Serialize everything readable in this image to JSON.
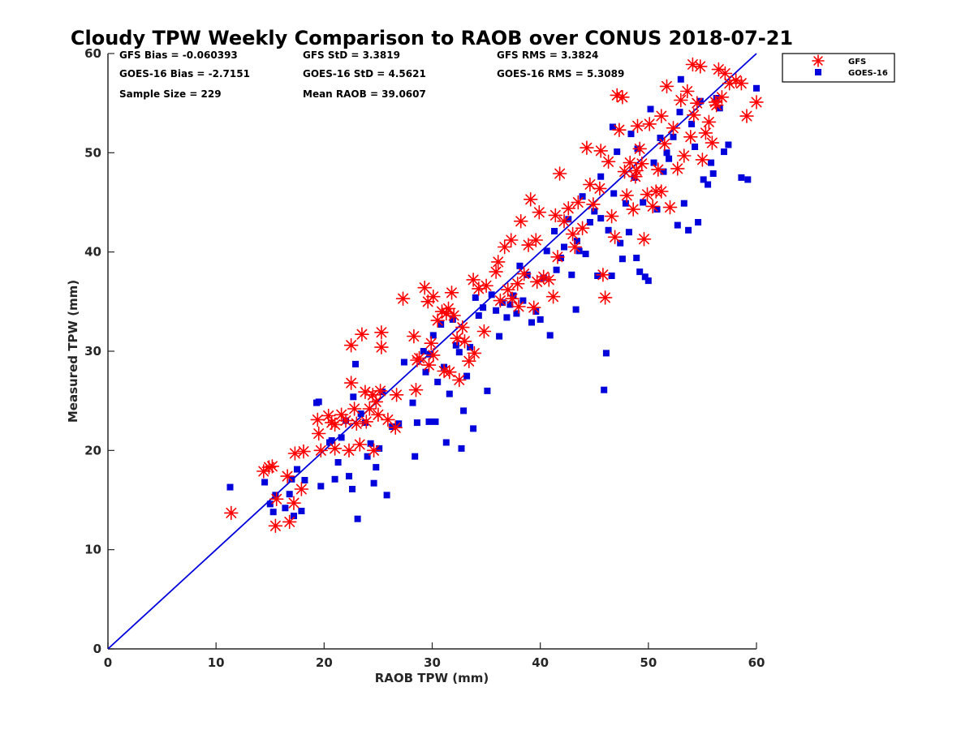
{
  "chart_data": {
    "type": "scatter",
    "title": "Cloudy TPW Weekly Comparison to RAOB over CONUS 2018-07-21",
    "xlabel": "RAOB TPW (mm)",
    "ylabel": "Measured TPW (mm)",
    "xlim": [
      0,
      60
    ],
    "ylim": [
      0,
      60
    ],
    "xticks": [
      "0",
      "10",
      "20",
      "30",
      "40",
      "50",
      "60"
    ],
    "yticks": [
      "0",
      "10",
      "20",
      "30",
      "40",
      "50",
      "60"
    ],
    "grid": false,
    "legend_position": "top-right outside",
    "stats": {
      "gfs_bias": "GFS Bias = -0.060393",
      "gfs_std": "GFS StD = 3.3819",
      "gfs_rms": "GFS RMS = 3.3824",
      "goes_bias": "GOES-16 Bias = -2.7151",
      "goes_std": "GOES-16 StD = 4.5621",
      "goes_rms": "GOES-16 RMS = 5.3089",
      "sample_size": "Sample Size = 229",
      "mean_raob": "Mean RAOB = 39.0607"
    },
    "reference_line": {
      "x": [
        0,
        60
      ],
      "y": [
        0,
        60
      ],
      "color": "#0000dd"
    },
    "series": [
      {
        "name": "GFS",
        "marker": "asterisk",
        "color": "#ff0000",
        "points": [
          [
            11.4,
            13.7
          ],
          [
            14.4,
            17.9
          ],
          [
            14.9,
            18.3
          ],
          [
            15.2,
            18.4
          ],
          [
            15.5,
            12.4
          ],
          [
            15.6,
            15.1
          ],
          [
            16.6,
            17.4
          ],
          [
            16.8,
            12.8
          ],
          [
            17.2,
            14.7
          ],
          [
            17.3,
            19.7
          ],
          [
            17.9,
            16.1
          ],
          [
            18.1,
            19.9
          ],
          [
            19.4,
            23.1
          ],
          [
            19.5,
            21.7
          ],
          [
            19.7,
            20.0
          ],
          [
            20.4,
            23.5
          ],
          [
            20.7,
            22.8
          ],
          [
            21.0,
            22.6
          ],
          [
            21.0,
            20.2
          ],
          [
            21.6,
            23.6
          ],
          [
            22.0,
            23.0
          ],
          [
            22.3,
            20.0
          ],
          [
            22.5,
            30.6
          ],
          [
            22.5,
            26.8
          ],
          [
            22.8,
            24.2
          ],
          [
            23.0,
            22.7
          ],
          [
            23.3,
            20.6
          ],
          [
            23.5,
            31.7
          ],
          [
            23.8,
            25.9
          ],
          [
            23.9,
            22.9
          ],
          [
            24.2,
            24.2
          ],
          [
            24.5,
            25.6
          ],
          [
            24.6,
            20.0
          ],
          [
            24.8,
            24.9
          ],
          [
            25.0,
            23.6
          ],
          [
            25.2,
            26.0
          ],
          [
            25.3,
            31.9
          ],
          [
            25.3,
            30.4
          ],
          [
            25.9,
            23.1
          ],
          [
            26.6,
            22.3
          ],
          [
            26.7,
            25.6
          ],
          [
            27.3,
            35.3
          ],
          [
            28.3,
            31.5
          ],
          [
            28.5,
            26.1
          ],
          [
            28.6,
            29.1
          ],
          [
            28.8,
            29.3
          ],
          [
            29.3,
            36.4
          ],
          [
            29.6,
            35.0
          ],
          [
            29.7,
            28.6
          ],
          [
            29.9,
            30.8
          ],
          [
            30.1,
            35.5
          ],
          [
            30.1,
            29.6
          ],
          [
            30.5,
            33.1
          ],
          [
            30.9,
            34.0
          ],
          [
            31.1,
            28.0
          ],
          [
            31.3,
            33.8
          ],
          [
            31.5,
            34.3
          ],
          [
            31.6,
            27.9
          ],
          [
            31.8,
            35.9
          ],
          [
            32.0,
            33.6
          ],
          [
            32.3,
            31.3
          ],
          [
            32.5,
            27.1
          ],
          [
            32.8,
            32.4
          ],
          [
            33.0,
            31.0
          ],
          [
            33.4,
            29.0
          ],
          [
            33.8,
            37.2
          ],
          [
            33.9,
            29.8
          ],
          [
            34.3,
            36.3
          ],
          [
            34.8,
            32.0
          ],
          [
            35.0,
            36.6
          ],
          [
            35.9,
            38.0
          ],
          [
            36.1,
            39.0
          ],
          [
            36.3,
            35.1
          ],
          [
            36.7,
            40.5
          ],
          [
            37.0,
            36.2
          ],
          [
            37.3,
            41.2
          ],
          [
            37.4,
            35.3
          ],
          [
            37.9,
            36.8
          ],
          [
            38.0,
            34.5
          ],
          [
            38.2,
            43.1
          ],
          [
            38.5,
            37.8
          ],
          [
            38.9,
            40.7
          ],
          [
            39.1,
            45.3
          ],
          [
            39.4,
            34.4
          ],
          [
            39.6,
            41.2
          ],
          [
            39.7,
            37.0
          ],
          [
            39.9,
            44.0
          ],
          [
            40.3,
            37.5
          ],
          [
            40.8,
            37.2
          ],
          [
            41.2,
            35.5
          ],
          [
            41.4,
            43.7
          ],
          [
            41.6,
            39.5
          ],
          [
            41.8,
            47.9
          ],
          [
            42.2,
            43.1
          ],
          [
            42.6,
            44.4
          ],
          [
            43.0,
            41.8
          ],
          [
            43.2,
            40.5
          ],
          [
            43.5,
            45.0
          ],
          [
            43.9,
            42.4
          ],
          [
            44.3,
            50.5
          ],
          [
            44.6,
            46.8
          ],
          [
            44.9,
            44.8
          ],
          [
            45.5,
            46.4
          ],
          [
            45.6,
            50.2
          ],
          [
            45.8,
            37.7
          ],
          [
            46.0,
            35.4
          ],
          [
            46.3,
            49.1
          ],
          [
            46.6,
            43.6
          ],
          [
            46.9,
            41.5
          ],
          [
            47.1,
            55.8
          ],
          [
            47.3,
            52.3
          ],
          [
            47.6,
            55.6
          ],
          [
            47.8,
            48.1
          ],
          [
            48.0,
            45.7
          ],
          [
            48.3,
            49.0
          ],
          [
            48.6,
            44.3
          ],
          [
            48.8,
            47.6
          ],
          [
            49.0,
            52.7
          ],
          [
            49.2,
            50.4
          ],
          [
            49.4,
            48.9
          ],
          [
            49.6,
            41.3
          ],
          [
            49.9,
            45.8
          ],
          [
            50.1,
            52.9
          ],
          [
            50.4,
            44.6
          ],
          [
            50.7,
            46.1
          ],
          [
            50.9,
            48.3
          ],
          [
            51.2,
            53.7
          ],
          [
            51.5,
            50.9
          ],
          [
            51.7,
            56.7
          ],
          [
            52.0,
            44.5
          ],
          [
            52.3,
            52.5
          ],
          [
            52.7,
            48.4
          ],
          [
            53.0,
            55.3
          ],
          [
            53.3,
            49.7
          ],
          [
            53.6,
            56.2
          ],
          [
            53.9,
            51.6
          ],
          [
            54.2,
            53.8
          ],
          [
            54.5,
            55.0
          ],
          [
            54.8,
            58.7
          ],
          [
            55.0,
            49.3
          ],
          [
            55.3,
            52.0
          ],
          [
            55.6,
            53.1
          ],
          [
            55.9,
            51.0
          ],
          [
            56.2,
            55.1
          ],
          [
            56.5,
            58.4
          ],
          [
            56.8,
            55.6
          ],
          [
            57.1,
            58.0
          ],
          [
            57.5,
            57.0
          ],
          [
            58.1,
            57.3
          ],
          [
            58.6,
            57.0
          ],
          [
            59.1,
            53.7
          ],
          [
            60.0,
            55.1
          ],
          [
            54.1,
            58.9
          ],
          [
            56.3,
            54.8
          ],
          [
            51.2,
            46.1
          ],
          [
            48.9,
            48.2
          ]
        ]
      },
      {
        "name": "GOES-16",
        "marker": "square",
        "color": "#0000dd",
        "points": [
          [
            11.3,
            16.3
          ],
          [
            14.5,
            16.8
          ],
          [
            15.0,
            14.6
          ],
          [
            15.3,
            13.8
          ],
          [
            15.5,
            15.5
          ],
          [
            16.4,
            14.2
          ],
          [
            16.8,
            15.6
          ],
          [
            17.0,
            17.1
          ],
          [
            17.2,
            13.4
          ],
          [
            17.5,
            18.1
          ],
          [
            17.9,
            13.9
          ],
          [
            18.2,
            17.0
          ],
          [
            19.3,
            24.8
          ],
          [
            19.5,
            24.9
          ],
          [
            19.7,
            16.4
          ],
          [
            20.5,
            20.8
          ],
          [
            20.7,
            21.0
          ],
          [
            21.0,
            17.1
          ],
          [
            21.3,
            18.8
          ],
          [
            21.6,
            21.3
          ],
          [
            22.0,
            23.0
          ],
          [
            22.3,
            17.4
          ],
          [
            22.6,
            16.1
          ],
          [
            22.7,
            25.4
          ],
          [
            22.9,
            28.7
          ],
          [
            23.1,
            13.1
          ],
          [
            23.4,
            23.7
          ],
          [
            23.8,
            22.8
          ],
          [
            24.0,
            19.4
          ],
          [
            24.3,
            20.7
          ],
          [
            24.6,
            16.7
          ],
          [
            24.8,
            18.3
          ],
          [
            25.1,
            20.2
          ],
          [
            25.4,
            25.9
          ],
          [
            25.8,
            15.5
          ],
          [
            26.3,
            22.4
          ],
          [
            26.9,
            22.7
          ],
          [
            27.4,
            28.9
          ],
          [
            28.2,
            24.8
          ],
          [
            28.4,
            19.4
          ],
          [
            28.6,
            22.8
          ],
          [
            29.2,
            30.0
          ],
          [
            29.4,
            27.9
          ],
          [
            29.7,
            22.9
          ],
          [
            29.8,
            29.7
          ],
          [
            30.1,
            31.6
          ],
          [
            30.3,
            22.9
          ],
          [
            30.5,
            26.9
          ],
          [
            30.8,
            32.7
          ],
          [
            31.1,
            28.4
          ],
          [
            31.3,
            20.8
          ],
          [
            31.6,
            25.7
          ],
          [
            31.9,
            33.2
          ],
          [
            32.2,
            30.6
          ],
          [
            32.5,
            29.9
          ],
          [
            32.7,
            20.2
          ],
          [
            32.9,
            24.0
          ],
          [
            33.2,
            27.5
          ],
          [
            33.5,
            30.4
          ],
          [
            33.8,
            22.2
          ],
          [
            34.0,
            35.4
          ],
          [
            34.3,
            33.6
          ],
          [
            34.7,
            34.4
          ],
          [
            35.1,
            26.0
          ],
          [
            35.5,
            35.7
          ],
          [
            35.9,
            34.1
          ],
          [
            36.2,
            31.5
          ],
          [
            36.5,
            34.9
          ],
          [
            36.9,
            33.4
          ],
          [
            37.2,
            34.7
          ],
          [
            37.5,
            35.6
          ],
          [
            37.8,
            33.8
          ],
          [
            38.1,
            38.6
          ],
          [
            38.4,
            35.1
          ],
          [
            38.8,
            37.7
          ],
          [
            39.2,
            32.9
          ],
          [
            39.6,
            34.0
          ],
          [
            40.0,
            33.2
          ],
          [
            40.3,
            37.4
          ],
          [
            40.6,
            40.1
          ],
          [
            40.9,
            31.6
          ],
          [
            41.3,
            42.1
          ],
          [
            41.5,
            38.2
          ],
          [
            41.9,
            39.4
          ],
          [
            42.2,
            40.5
          ],
          [
            42.6,
            43.3
          ],
          [
            42.9,
            37.7
          ],
          [
            43.3,
            34.2
          ],
          [
            43.6,
            40.1
          ],
          [
            43.9,
            45.6
          ],
          [
            44.2,
            39.8
          ],
          [
            44.6,
            43.0
          ],
          [
            45.0,
            44.1
          ],
          [
            45.3,
            37.6
          ],
          [
            45.6,
            43.4
          ],
          [
            45.9,
            26.1
          ],
          [
            46.1,
            29.8
          ],
          [
            46.3,
            42.2
          ],
          [
            46.6,
            37.6
          ],
          [
            46.8,
            45.9
          ],
          [
            47.1,
            50.1
          ],
          [
            47.4,
            40.9
          ],
          [
            47.6,
            39.3
          ],
          [
            47.9,
            44.9
          ],
          [
            48.2,
            42.0
          ],
          [
            48.4,
            51.9
          ],
          [
            48.7,
            47.5
          ],
          [
            48.9,
            39.4
          ],
          [
            49.2,
            38.0
          ],
          [
            49.5,
            45.0
          ],
          [
            49.7,
            37.5
          ],
          [
            50.0,
            37.1
          ],
          [
            50.2,
            54.4
          ],
          [
            50.5,
            49.0
          ],
          [
            50.8,
            44.3
          ],
          [
            51.1,
            51.5
          ],
          [
            51.4,
            48.1
          ],
          [
            51.7,
            50.0
          ],
          [
            51.9,
            49.4
          ],
          [
            52.3,
            51.6
          ],
          [
            52.7,
            42.7
          ],
          [
            53.0,
            57.4
          ],
          [
            53.3,
            44.9
          ],
          [
            53.7,
            42.2
          ],
          [
            54.0,
            52.9
          ],
          [
            54.3,
            50.6
          ],
          [
            54.6,
            43.0
          ],
          [
            54.8,
            55.2
          ],
          [
            55.1,
            47.3
          ],
          [
            55.5,
            46.8
          ],
          [
            55.8,
            49.0
          ],
          [
            56.0,
            47.9
          ],
          [
            56.3,
            55.5
          ],
          [
            56.6,
            54.5
          ],
          [
            57.0,
            50.1
          ],
          [
            57.4,
            50.8
          ],
          [
            58.6,
            47.5
          ],
          [
            59.2,
            47.3
          ],
          [
            60.0,
            56.5
          ],
          [
            45.6,
            47.6
          ],
          [
            43.4,
            41.1
          ],
          [
            52.9,
            54.1
          ],
          [
            49.0,
            50.4
          ],
          [
            46.7,
            52.6
          ]
        ]
      }
    ]
  }
}
